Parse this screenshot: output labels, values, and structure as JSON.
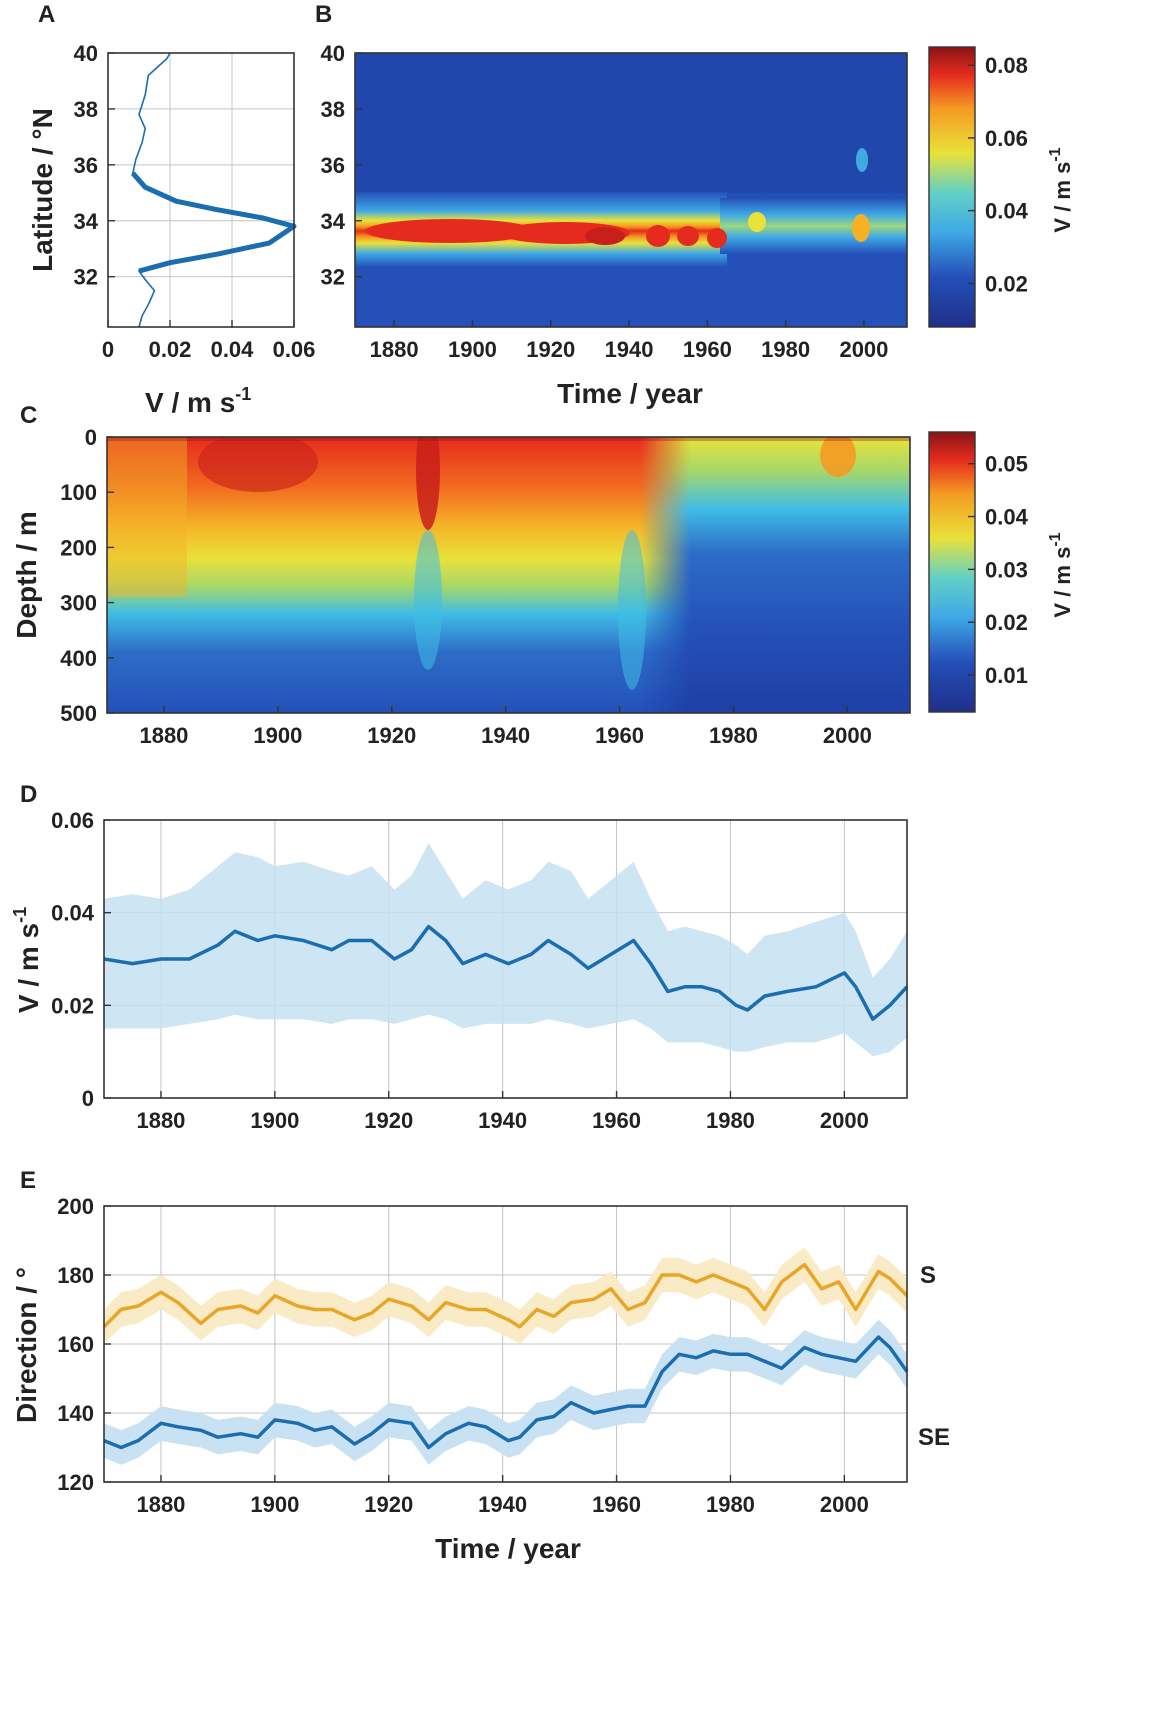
{
  "colors": {
    "blue": "#1a6db0",
    "blue_band": "#c6e0f2",
    "orange": "#e8a628",
    "orange_band": "#faeac4",
    "axis": "#333333",
    "grid": "#bdbdbd"
  },
  "chart_data": [
    {
      "id": "A",
      "panel_label": "A",
      "type": "line",
      "orientation": "vertical-profile",
      "xlabel": "V / m s",
      "xlabel_sup": "-1",
      "ylabel": "Latitude / °N",
      "xlim": [
        0,
        0.06
      ],
      "ylim": [
        30.2,
        40
      ],
      "xticks": [
        0,
        0.02,
        0.04,
        0.06
      ],
      "xtick_labels": [
        "0",
        "0.02",
        "0.04",
        "0.06"
      ],
      "yticks": [
        32,
        34,
        36,
        38,
        40
      ],
      "ytick_labels": [
        "32",
        "34",
        "36",
        "38",
        "40"
      ],
      "grid": true,
      "series": [
        {
          "name": "profile",
          "points": [
            [
              0.01,
              30.2
            ],
            [
              0.011,
              30.6
            ],
            [
              0.013,
              31.0
            ],
            [
              0.015,
              31.5
            ],
            [
              0.012,
              31.9
            ],
            [
              0.01,
              32.2
            ],
            [
              0.02,
              32.5
            ],
            [
              0.035,
              32.8
            ],
            [
              0.052,
              33.2
            ],
            [
              0.06,
              33.8
            ],
            [
              0.05,
              34.1
            ],
            [
              0.035,
              34.4
            ],
            [
              0.022,
              34.7
            ],
            [
              0.012,
              35.2
            ],
            [
              0.008,
              35.7
            ],
            [
              0.009,
              36.2
            ],
            [
              0.011,
              36.8
            ],
            [
              0.012,
              37.3
            ],
            [
              0.01,
              37.8
            ],
            [
              0.012,
              38.5
            ],
            [
              0.013,
              39.2
            ],
            [
              0.019,
              39.8
            ],
            [
              0.02,
              40.0
            ]
          ],
          "emphasis_lat_range": [
            32.2,
            35.7
          ]
        }
      ]
    },
    {
      "id": "B",
      "panel_label": "B",
      "type": "heatmap",
      "xlabel": "Time / year",
      "ylabel": "",
      "xlim": [
        1870,
        2011
      ],
      "ylim": [
        30.2,
        40
      ],
      "xticks": [
        1880,
        1900,
        1920,
        1940,
        1960,
        1980,
        2000
      ],
      "xtick_labels": [
        "1880",
        "1900",
        "1920",
        "1940",
        "1960",
        "1980",
        "2000"
      ],
      "yticks": [
        32,
        34,
        36,
        38,
        40
      ],
      "ytick_labels": [
        "32",
        "34",
        "36",
        "38",
        "40"
      ],
      "colorbar": {
        "label": "V / m s",
        "label_sup": "-1",
        "range": [
          0.008,
          0.085
        ],
        "ticks": [
          0.02,
          0.04,
          0.06,
          0.08
        ],
        "tick_labels": [
          "0.02",
          "0.04",
          "0.06",
          "0.08"
        ]
      },
      "description_values": {
        "background": 0.012,
        "core_lat": 33.6,
        "core_max_1880_1965": 0.078,
        "core_after_1970": 0.045
      }
    },
    {
      "id": "C",
      "panel_label": "C",
      "type": "heatmap",
      "xlabel": "",
      "ylabel": "Depth / m",
      "xlim": [
        1870,
        2011
      ],
      "ylim": [
        0,
        500
      ],
      "xticks": [
        1880,
        1900,
        1920,
        1940,
        1960,
        1980,
        2000
      ],
      "xtick_labels": [
        "1880",
        "1900",
        "1920",
        "1940",
        "1960",
        "1980",
        "2000"
      ],
      "yticks": [
        0,
        100,
        200,
        300,
        400,
        500
      ],
      "ytick_labels": [
        "0",
        "100",
        "200",
        "300",
        "400",
        "500"
      ],
      "colorbar": {
        "label": "V / m s",
        "label_sup": "-1",
        "range": [
          0.003,
          0.056
        ],
        "ticks": [
          0.01,
          0.02,
          0.03,
          0.04,
          0.05
        ],
        "tick_labels": [
          "0.01",
          "0.02",
          "0.03",
          "0.04",
          "0.05"
        ]
      },
      "surface_max": 0.054
    },
    {
      "id": "D",
      "panel_label": "D",
      "type": "area",
      "xlabel": "",
      "ylabel": "V / m s",
      "ylabel_sup": "-1",
      "xlim": [
        1870,
        2011
      ],
      "ylim": [
        0,
        0.06
      ],
      "xticks": [
        1880,
        1900,
        1920,
        1940,
        1960,
        1980,
        2000
      ],
      "xtick_labels": [
        "1880",
        "1900",
        "1920",
        "1940",
        "1960",
        "1980",
        "2000"
      ],
      "yticks": [
        0,
        0.02,
        0.04,
        0.06
      ],
      "ytick_labels": [
        "0",
        "0.02",
        "0.04",
        "0.06"
      ],
      "grid": true,
      "x": [
        1870,
        1875,
        1880,
        1885,
        1890,
        1893,
        1897,
        1900,
        1905,
        1910,
        1913,
        1917,
        1921,
        1924,
        1927,
        1930,
        1933,
        1937,
        1941,
        1945,
        1948,
        1952,
        1955,
        1959,
        1963,
        1966,
        1969,
        1972,
        1975,
        1978,
        1981,
        1983,
        1986,
        1990,
        1995,
        2000,
        2002,
        2005,
        2008,
        2011
      ],
      "series": [
        {
          "name": "mean",
          "values": [
            0.03,
            0.029,
            0.03,
            0.03,
            0.033,
            0.036,
            0.034,
            0.035,
            0.034,
            0.032,
            0.034,
            0.034,
            0.03,
            0.032,
            0.037,
            0.034,
            0.029,
            0.031,
            0.029,
            0.031,
            0.034,
            0.031,
            0.028,
            0.031,
            0.034,
            0.029,
            0.023,
            0.024,
            0.024,
            0.023,
            0.02,
            0.019,
            0.022,
            0.023,
            0.024,
            0.027,
            0.024,
            0.017,
            0.02,
            0.024
          ]
        },
        {
          "name": "upper",
          "values": [
            0.043,
            0.044,
            0.043,
            0.045,
            0.05,
            0.053,
            0.052,
            0.05,
            0.051,
            0.049,
            0.048,
            0.05,
            0.045,
            0.048,
            0.055,
            0.049,
            0.043,
            0.047,
            0.045,
            0.047,
            0.051,
            0.049,
            0.043,
            0.047,
            0.051,
            0.043,
            0.036,
            0.037,
            0.036,
            0.035,
            0.033,
            0.031,
            0.035,
            0.036,
            0.038,
            0.04,
            0.036,
            0.026,
            0.03,
            0.036
          ]
        },
        {
          "name": "lower",
          "values": [
            0.015,
            0.015,
            0.015,
            0.016,
            0.017,
            0.018,
            0.017,
            0.017,
            0.017,
            0.016,
            0.017,
            0.017,
            0.016,
            0.017,
            0.018,
            0.017,
            0.015,
            0.016,
            0.016,
            0.016,
            0.017,
            0.016,
            0.015,
            0.016,
            0.017,
            0.015,
            0.012,
            0.012,
            0.012,
            0.011,
            0.01,
            0.01,
            0.011,
            0.012,
            0.012,
            0.014,
            0.012,
            0.009,
            0.01,
            0.013
          ]
        }
      ]
    },
    {
      "id": "E",
      "panel_label": "E",
      "type": "line",
      "xlabel": "Time / year",
      "ylabel": "Direction / °",
      "xlim": [
        1870,
        2011
      ],
      "ylim": [
        120,
        200
      ],
      "xticks": [
        1880,
        1900,
        1920,
        1940,
        1960,
        1980,
        2000
      ],
      "xtick_labels": [
        "1880",
        "1900",
        "1920",
        "1940",
        "1960",
        "1980",
        "2000"
      ],
      "yticks": [
        120,
        140,
        160,
        180,
        200
      ],
      "ytick_labels": [
        "120",
        "140",
        "160",
        "180",
        "200"
      ],
      "grid": true,
      "side_labels": [
        "S",
        "SE"
      ],
      "x": [
        1870,
        1873,
        1876,
        1880,
        1883,
        1887,
        1890,
        1894,
        1897,
        1900,
        1904,
        1907,
        1910,
        1914,
        1917,
        1920,
        1924,
        1927,
        1930,
        1934,
        1937,
        1941,
        1943,
        1946,
        1949,
        1952,
        1956,
        1959,
        1962,
        1965,
        1968,
        1971,
        1974,
        1977,
        1980,
        1983,
        1986,
        1989,
        1993,
        1996,
        1999,
        2002,
        2006,
        2008,
        2011
      ],
      "series": [
        {
          "name": "S",
          "values": [
            165,
            170,
            171,
            175,
            172,
            166,
            170,
            171,
            169,
            174,
            171,
            170,
            170,
            167,
            169,
            173,
            171,
            167,
            172,
            170,
            170,
            167,
            165,
            170,
            168,
            172,
            173,
            176,
            170,
            172,
            180,
            180,
            178,
            180,
            178,
            176,
            170,
            178,
            183,
            176,
            178,
            170,
            181,
            179,
            174
          ],
          "band": 5
        },
        {
          "name": "SE",
          "values": [
            132,
            130,
            132,
            137,
            136,
            135,
            133,
            134,
            133,
            138,
            137,
            135,
            136,
            131,
            134,
            138,
            137,
            130,
            134,
            137,
            136,
            132,
            133,
            138,
            139,
            143,
            140,
            141,
            142,
            142,
            152,
            157,
            156,
            158,
            157,
            157,
            155,
            153,
            159,
            157,
            156,
            155,
            162,
            159,
            152
          ],
          "band": 5
        }
      ]
    }
  ]
}
